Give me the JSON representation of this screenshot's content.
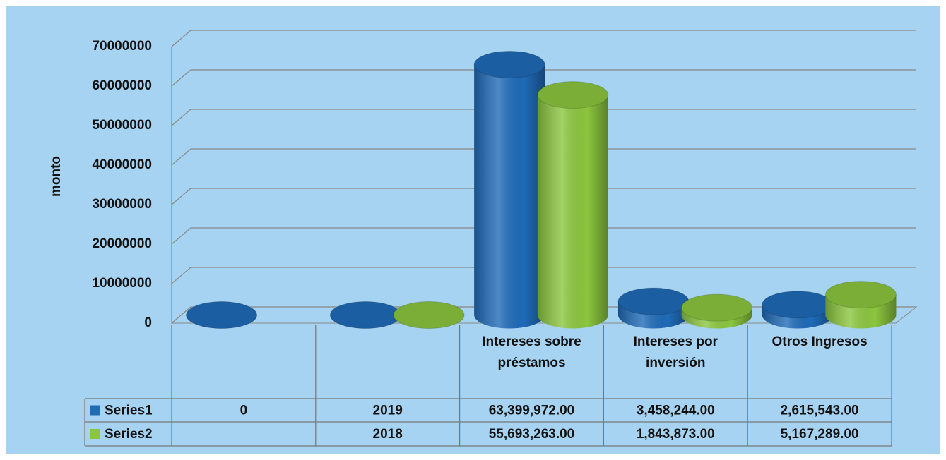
{
  "chart_data": {
    "type": "bar3d-cylinder",
    "y_label": "monto",
    "categories": [
      null,
      null,
      "Intereses sobre préstamos",
      "Intereses por inversión",
      "Otros Ingresos"
    ],
    "series": [
      {
        "name": "Series1",
        "color": "#1f6bb8",
        "values": [
          0,
          2019,
          63399972,
          3458244,
          2615543
        ],
        "value_labels": [
          "0",
          "2019",
          "63,399,972.00",
          "3,458,244.00",
          "2,615,543.00"
        ]
      },
      {
        "name": "Series2",
        "color": "#8cc63f",
        "values": [
          null,
          2018,
          55693263,
          1843873,
          5167289
        ],
        "value_labels": [
          null,
          "2018",
          "55,693,263.00",
          "1,843,873.00",
          "5,167,289.00"
        ]
      }
    ],
    "ylim": [
      0,
      70000000
    ],
    "yticks": [
      0,
      10000000,
      20000000,
      30000000,
      40000000,
      50000000,
      60000000,
      70000000
    ],
    "grid": true,
    "data_table": true
  }
}
